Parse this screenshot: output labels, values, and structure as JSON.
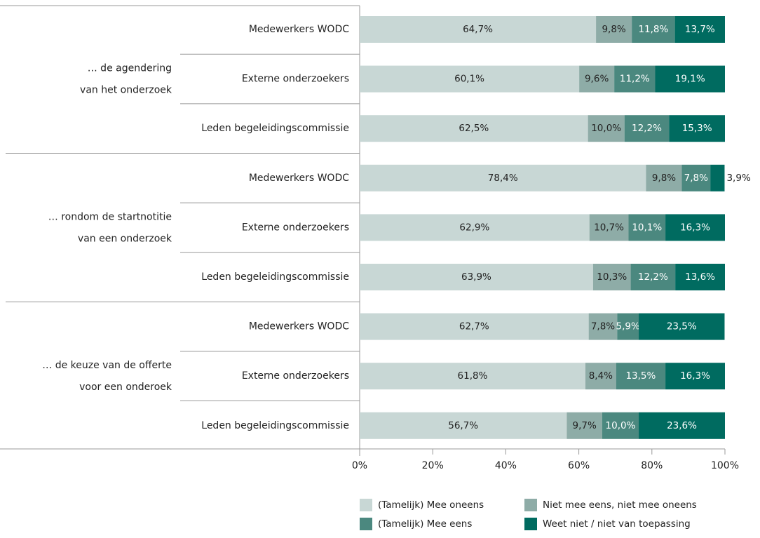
{
  "chart_data": {
    "type": "stacked-barh",
    "groups": [
      {
        "lines": [
          "… de agendering",
          "van het onderzoek"
        ],
        "categories": [
          "Medewerkers WODC",
          "Externe onderzoekers",
          "Leden begeleidingscommissie"
        ]
      },
      {
        "lines": [
          "… rondom de startnotitie",
          "van een onderzoek"
        ],
        "categories": [
          "Medewerkers WODC",
          "Externe onderzoekers",
          "Leden begeleidingscommissie"
        ]
      },
      {
        "lines": [
          "… de keuze van de offerte",
          "voor een onderoek"
        ],
        "categories": [
          "Medewerkers WODC",
          "Externe onderzoekers",
          "Leden begeleidingscommissie"
        ]
      }
    ],
    "series": [
      {
        "name": "(Tamelijk) Mee oneens",
        "color": "#c8d7d5",
        "label_color": "#222222",
        "values": [
          64.7,
          60.1,
          62.5,
          78.4,
          62.9,
          63.9,
          62.7,
          61.8,
          56.7
        ],
        "value_labels": [
          "64,7%",
          "60,1%",
          "62,5%",
          "78,4%",
          "62,9%",
          "63,9%",
          "62,7%",
          "61,8%",
          "56,7%"
        ]
      },
      {
        "name": "Niet mee eens, niet mee oneens",
        "color": "#8eaca7",
        "label_color": "#222222",
        "values": [
          9.8,
          9.6,
          10.0,
          9.8,
          10.7,
          10.3,
          7.8,
          8.4,
          9.7
        ],
        "value_labels": [
          "9,8%",
          "9,6%",
          "10,0%",
          "9,8%",
          "10,7%",
          "10,3%",
          "7,8%",
          "8,4%",
          "9,7%"
        ]
      },
      {
        "name": "(Tamelijk) Mee eens",
        "color": "#4b887f",
        "label_color": "#ffffff",
        "values": [
          11.8,
          11.2,
          12.2,
          7.8,
          10.1,
          12.2,
          5.9,
          13.5,
          10.0
        ],
        "value_labels": [
          "11,8%",
          "11,2%",
          "12,2%",
          "7,8%",
          "10,1%",
          "12,2%",
          "5,9%",
          "13,5%",
          "10,0%"
        ]
      },
      {
        "name": "Weet niet / niet van toepassing",
        "color": "#006b60",
        "label_color": "#ffffff",
        "values": [
          13.7,
          19.1,
          15.3,
          3.9,
          16.3,
          13.6,
          23.5,
          16.3,
          23.6
        ],
        "value_labels": [
          "13,7%",
          "19,1%",
          "15,3%",
          "3,9%",
          "16,3%",
          "13,6%",
          "23,5%",
          "16,3%",
          "23,6%"
        ]
      }
    ],
    "xlim": [
      0,
      100
    ],
    "xticks": [
      {
        "value": 0,
        "label": "0%"
      },
      {
        "value": 20,
        "label": "20%"
      },
      {
        "value": 40,
        "label": "40%"
      },
      {
        "value": 60,
        "label": "60%"
      },
      {
        "value": 80,
        "label": "80%"
      },
      {
        "value": 100,
        "label": "100%"
      }
    ]
  }
}
